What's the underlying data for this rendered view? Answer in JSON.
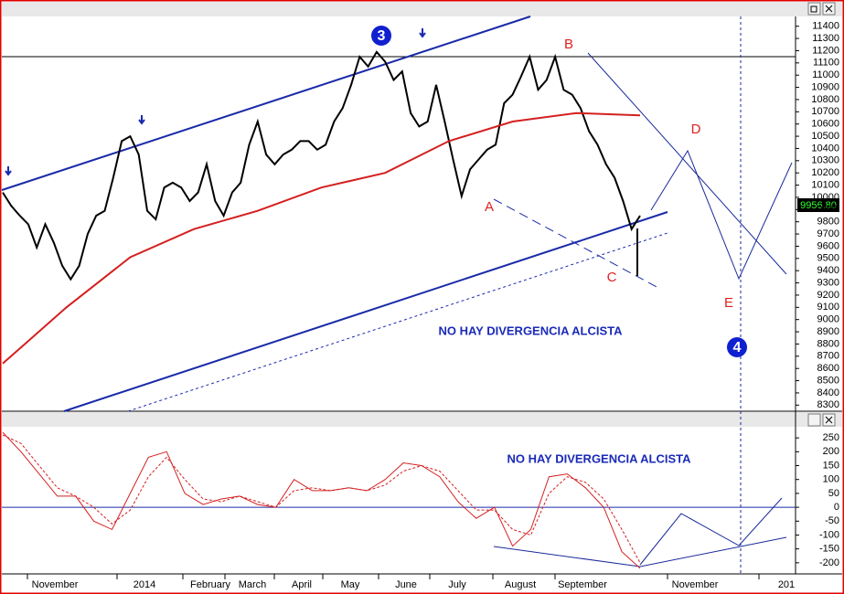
{
  "chart_data": [
    {
      "type": "line",
      "title": "NO HAY DIVERGENCIA ALCISTA",
      "last_price_label": "9956.80",
      "ylim": [
        8250,
        11480
      ],
      "yticks": [
        8300,
        8400,
        8500,
        8600,
        8700,
        8800,
        8900,
        9000,
        9100,
        9200,
        9300,
        9400,
        9500,
        9600,
        9700,
        9800,
        9900,
        10000,
        10100,
        10200,
        10300,
        10400,
        10500,
        10600,
        10700,
        10800,
        10900,
        11000,
        11100,
        11200,
        11300,
        11400
      ],
      "annotations": [
        "3",
        "4",
        "A",
        "B",
        "C",
        "D",
        "E"
      ],
      "series": [
        {
          "name": "Price",
          "color": "#000000",
          "values": [
            10040,
            9930,
            9850,
            9780,
            9590,
            9780,
            9630,
            9440,
            9330,
            9440,
            9700,
            9850,
            9890,
            10160,
            10460,
            10500,
            10350,
            9890,
            9820,
            10080,
            10120,
            10080,
            9970,
            10040,
            10270,
            9970,
            9850,
            10040,
            10120,
            10430,
            10620,
            10350,
            10270,
            10350,
            10390,
            10460,
            10460,
            10390,
            10430,
            10620,
            10730,
            10920,
            11150,
            11070,
            11190,
            11110,
            10960,
            11030,
            10690,
            10580,
            10620,
            10920,
            10620,
            10310,
            10010,
            10230,
            10310,
            10390,
            10430,
            10770,
            10840,
            10990,
            11150,
            10880,
            10960,
            11150,
            10880,
            10840,
            10730,
            10540,
            10430,
            10270,
            10160,
            9970,
            9740,
            9850
          ]
        },
        {
          "name": "MA",
          "color": "#d42020",
          "values": [
            8640,
            9100,
            9510,
            9740,
            9890,
            10080,
            10200,
            10460,
            10620,
            10690,
            10670
          ]
        }
      ]
    },
    {
      "type": "line",
      "title": "NO HAY DIVERGENCIA ALCISTA",
      "ylim": [
        -240,
        290
      ],
      "yticks": [
        -200,
        -150,
        -100,
        -50,
        0,
        50,
        100,
        150,
        200,
        250
      ],
      "series": [
        {
          "name": "Oscillator",
          "color": "#d42020",
          "values": [
            270,
            200,
            120,
            40,
            40,
            -50,
            -80,
            50,
            180,
            200,
            50,
            10,
            30,
            40,
            10,
            0,
            100,
            60,
            60,
            70,
            60,
            100,
            160,
            150,
            110,
            20,
            -40,
            0,
            -140,
            -80,
            110,
            120,
            70,
            0,
            -160,
            -220
          ]
        },
        {
          "name": "Signal",
          "color": "#d42020",
          "values": [
            260,
            230,
            150,
            70,
            40,
            0,
            -60,
            -10,
            110,
            180,
            100,
            30,
            20,
            40,
            20,
            0,
            60,
            70,
            60,
            70,
            60,
            80,
            130,
            150,
            130,
            60,
            -10,
            -10,
            -80,
            -100,
            50,
            110,
            90,
            30,
            -80,
            -200
          ]
        }
      ]
    }
  ],
  "x_axis_labels": [
    "November",
    "2014",
    "February",
    "March",
    "April",
    "May",
    "June",
    "July",
    "August",
    "September",
    "November",
    "201"
  ]
}
